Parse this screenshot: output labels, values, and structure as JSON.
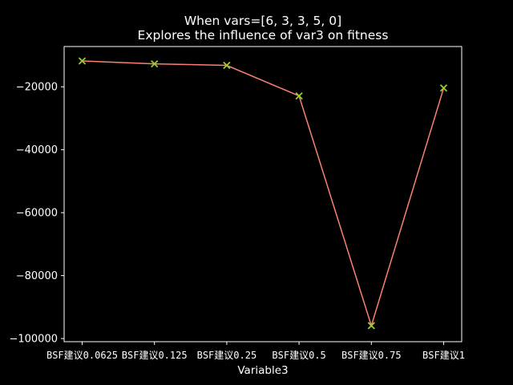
{
  "chart_data": {
    "type": "line",
    "title": "When vars=[6, 3, 3, 5, 0]",
    "subtitle": "Explores the influence of var3 on fitness",
    "xlabel": "Variable3",
    "ylabel": "",
    "categories": [
      "BSF建议0.0625",
      "BSF建议0.125",
      "BSF建议0.25",
      "BSF建议0.5",
      "BSF建议0.75",
      "BSF建议1"
    ],
    "values": [
      -11800,
      -12700,
      -13200,
      -22900,
      -95900,
      -20400
    ],
    "ylim": [
      -101000,
      -7200
    ],
    "yticks": [
      -100000,
      -80000,
      -60000,
      -40000,
      -20000
    ],
    "ytick_labels": [
      "−100000",
      "−80000",
      "−60000",
      "−40000",
      "−20000"
    ],
    "grid": false,
    "legend": "none",
    "colors": {
      "background": "#000000",
      "axes": "#ffffff",
      "line": "#fa8072",
      "marker": "#9acd32",
      "text": "#ffffff"
    },
    "marker": "x"
  }
}
